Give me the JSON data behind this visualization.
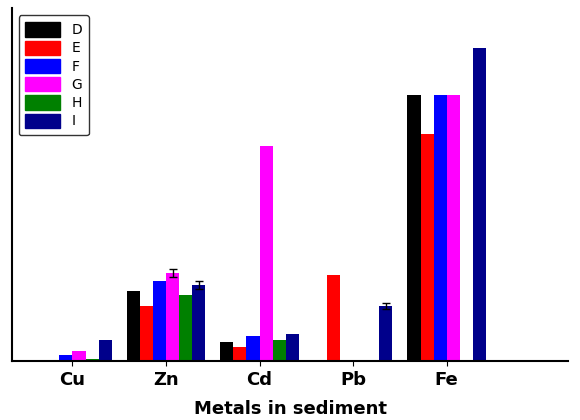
{
  "categories": [
    "Cu",
    "Zn",
    "Cd",
    "Pb",
    "Fe"
  ],
  "series_labels": [
    "D",
    "E",
    "F",
    "G",
    "H",
    "I"
  ],
  "colors": [
    "#000000",
    "#ff0000",
    "#0000ff",
    "#ff00ff",
    "#008000",
    "#00008b"
  ],
  "values": {
    "Cu": [
      0.0,
      0.0,
      1.5,
      2.5,
      0.5,
      5.5
    ],
    "Zn": [
      18.0,
      14.0,
      20.5,
      22.5,
      17.0,
      19.5
    ],
    "Cd": [
      5.0,
      3.5,
      6.5,
      55.0,
      5.5,
      7.0
    ],
    "Pb": [
      0.0,
      22.0,
      0.0,
      0.0,
      0.0,
      14.0
    ],
    "Fe": [
      68.0,
      58.0,
      68.0,
      68.0,
      0.0,
      80.0
    ]
  },
  "xlabel": "Metals in sediment",
  "ylabel": "",
  "ylim": [
    0,
    90
  ],
  "bar_width": 0.14,
  "figure_bgcolor": "#ffffff",
  "axes_bgcolor": "#ffffff",
  "title": "",
  "xlim_left": -0.65,
  "xlim_right": 5.3
}
